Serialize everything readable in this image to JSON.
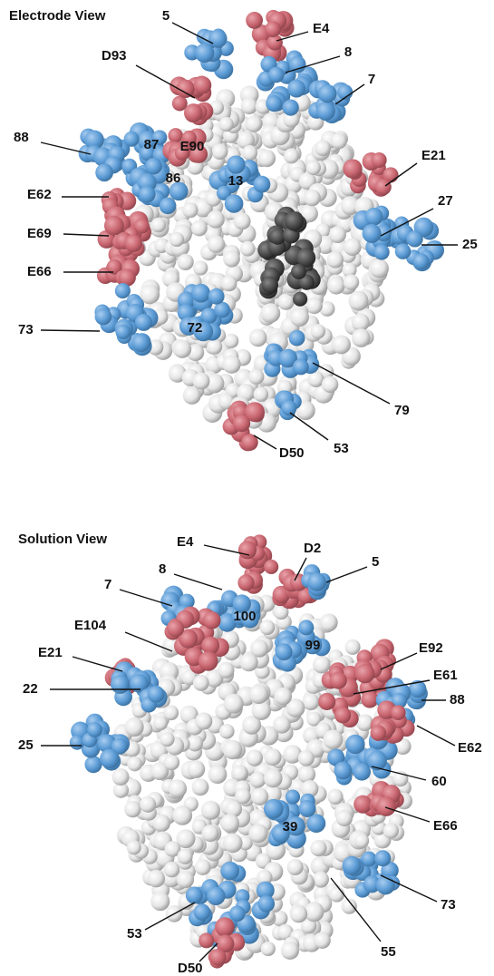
{
  "views": [
    {
      "title": "Electrode View",
      "labels": [
        "5",
        "E4",
        "D93",
        "8",
        "7",
        "88",
        "87",
        "E90",
        "86",
        "13",
        "E21",
        "E62",
        "27",
        "E69",
        "25",
        "E66",
        "73",
        "72",
        "79",
        "53",
        "D50"
      ]
    },
    {
      "title": "Solution View",
      "labels": [
        "E4",
        "D2",
        "5",
        "8",
        "7",
        "100",
        "E104",
        "E92",
        "E21",
        "99",
        "E61",
        "22",
        "88",
        "25",
        "E62",
        "60",
        "E66",
        "39",
        "73",
        "53",
        "55",
        "D50"
      ]
    }
  ]
}
